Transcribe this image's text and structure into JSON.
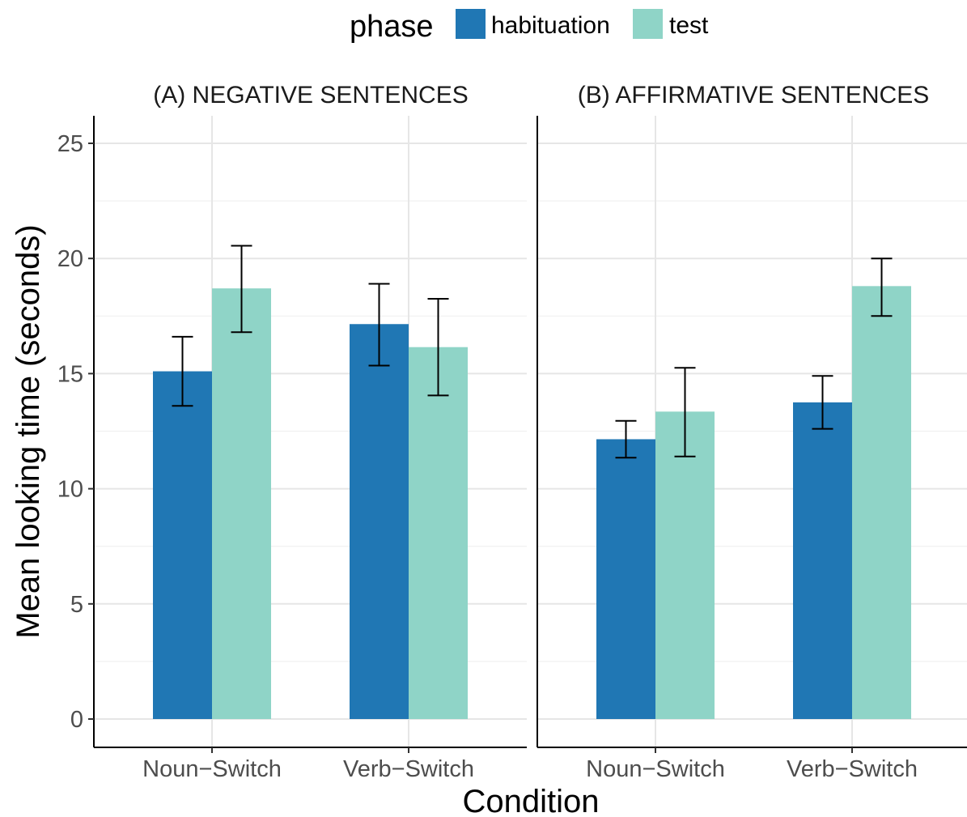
{
  "chart_data": {
    "type": "bar",
    "xlabel": "Condition",
    "ylabel": "Mean looking time (seconds)",
    "ylim": [
      0,
      26.2
    ],
    "yticks": [
      0,
      5,
      10,
      15,
      20,
      25
    ],
    "grid": true,
    "legend": {
      "title": "phase",
      "position": "top",
      "entries": [
        {
          "label": "habituation",
          "color": "#2077b4"
        },
        {
          "label": "test",
          "color": "#8fd4c7"
        }
      ]
    },
    "categories": [
      "Noun−Switch",
      "Verb−Switch"
    ],
    "panels": [
      {
        "title": "(A) NEGATIVE SENTENCES",
        "series": [
          {
            "name": "habituation",
            "values": [
              15.1,
              17.15
            ],
            "error_low": [
              13.6,
              15.35
            ],
            "error_high": [
              16.6,
              18.9
            ]
          },
          {
            "name": "test",
            "values": [
              18.7,
              16.15
            ],
            "error_low": [
              16.8,
              14.05
            ],
            "error_high": [
              20.55,
              18.25
            ]
          }
        ]
      },
      {
        "title": "(B) AFFIRMATIVE SENTENCES",
        "series": [
          {
            "name": "habituation",
            "values": [
              12.15,
              13.75
            ],
            "error_low": [
              11.35,
              12.6
            ],
            "error_high": [
              12.95,
              14.9
            ]
          },
          {
            "name": "test",
            "values": [
              13.35,
              18.8
            ],
            "error_low": [
              11.4,
              17.5
            ],
            "error_high": [
              15.25,
              20.0
            ]
          }
        ]
      }
    ]
  }
}
